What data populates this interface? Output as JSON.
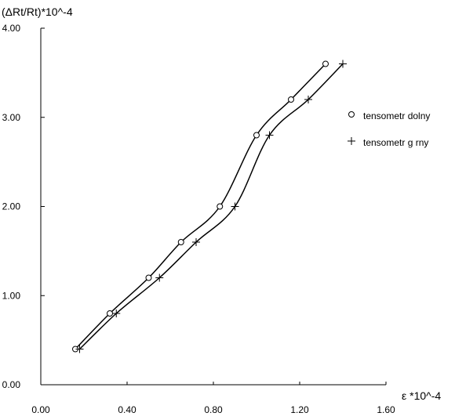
{
  "chart_data": {
    "type": "line",
    "title": "",
    "xlabel": "ε *10^-4",
    "ylabel": "(ΔRt/Rt)*10^-4",
    "xlim": [
      0.0,
      1.6
    ],
    "ylim": [
      0.0,
      4.0
    ],
    "x_ticks": [
      "0.00",
      "0.40",
      "0.80",
      "1.20",
      "1.60"
    ],
    "y_ticks": [
      "0.00",
      "1.00",
      "2.00",
      "3.00",
      "4.00"
    ],
    "grid": false,
    "legend_position": "right",
    "series": [
      {
        "name": "tensometr dolny",
        "marker": "circle",
        "color": "#000000",
        "x": [
          0.16,
          0.32,
          0.5,
          0.65,
          0.83,
          1.0,
          1.16,
          1.32
        ],
        "y": [
          0.4,
          0.8,
          1.2,
          1.6,
          2.0,
          2.8,
          3.2,
          3.6
        ]
      },
      {
        "name": "tensometr g rny",
        "marker": "plus",
        "color": "#000000",
        "x": [
          0.18,
          0.35,
          0.55,
          0.72,
          0.9,
          1.06,
          1.24,
          1.4
        ],
        "y": [
          0.4,
          0.8,
          1.2,
          1.6,
          2.0,
          2.8,
          3.2,
          3.6
        ]
      }
    ]
  }
}
